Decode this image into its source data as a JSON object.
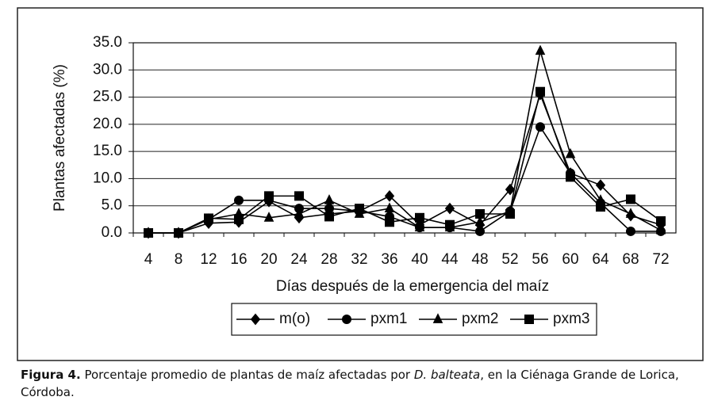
{
  "chart_data": {
    "type": "line",
    "x_label": "Días después de la emergencia del maíz",
    "y_label": "Plantas afectadas (%)",
    "categories": [
      "4",
      "8",
      "12",
      "16",
      "20",
      "24",
      "28",
      "32",
      "36",
      "40",
      "44",
      "48",
      "52",
      "56",
      "60",
      "64",
      "68",
      "72"
    ],
    "series": [
      {
        "name": "m(o)",
        "color": "#000000",
        "marker": "diamond",
        "values": [
          0,
          0,
          1.8,
          2,
          5.8,
          2.8,
          3.5,
          4,
          6.8,
          1.5,
          4.5,
          1.5,
          8,
          25.5,
          11,
          8.8,
          3.2,
          1.5
        ]
      },
      {
        "name": "pxm1",
        "color": "#000000",
        "marker": "circle",
        "values": [
          0,
          0,
          2.5,
          6,
          6,
          4.5,
          4.5,
          4,
          3,
          1,
          1,
          0.3,
          4,
          19.5,
          11,
          5.5,
          0.3,
          0.3
        ]
      },
      {
        "name": "pxm2",
        "color": "#000000",
        "marker": "triangle",
        "values": [
          0,
          0,
          2.5,
          3.5,
          2.8,
          3.5,
          6,
          3.5,
          4.5,
          1,
          1,
          2,
          4,
          33.5,
          14.5,
          6,
          3.5,
          0.5
        ]
      },
      {
        "name": "pxm3",
        "color": "#000000",
        "marker": "square",
        "values": [
          0,
          0,
          2.7,
          2.5,
          6.8,
          6.8,
          3,
          4.5,
          2,
          2.8,
          1.5,
          3.5,
          3.5,
          26,
          10.3,
          4.8,
          6.2,
          2.2
        ]
      }
    ],
    "ylim": [
      0,
      35
    ],
    "yticks": [
      {
        "value": 0,
        "label": "0.0"
      },
      {
        "value": 5,
        "label": "5.0"
      },
      {
        "value": 10,
        "label": "10.0"
      },
      {
        "value": 15,
        "label": "15.0"
      },
      {
        "value": 20,
        "label": "20.0"
      },
      {
        "value": 25,
        "label": "25.0"
      },
      {
        "value": 30,
        "label": "30.0"
      },
      {
        "value": 35,
        "label": "35.0"
      }
    ],
    "grid": true,
    "legend": "bottom"
  },
  "caption": {
    "label": "Figura 4.",
    "text": "Porcentaje promedio de plantas de maíz afectadas por ",
    "species": "D. balteata",
    "text_end": ", en la Ciénaga Grande de Lorica, Córdoba."
  }
}
